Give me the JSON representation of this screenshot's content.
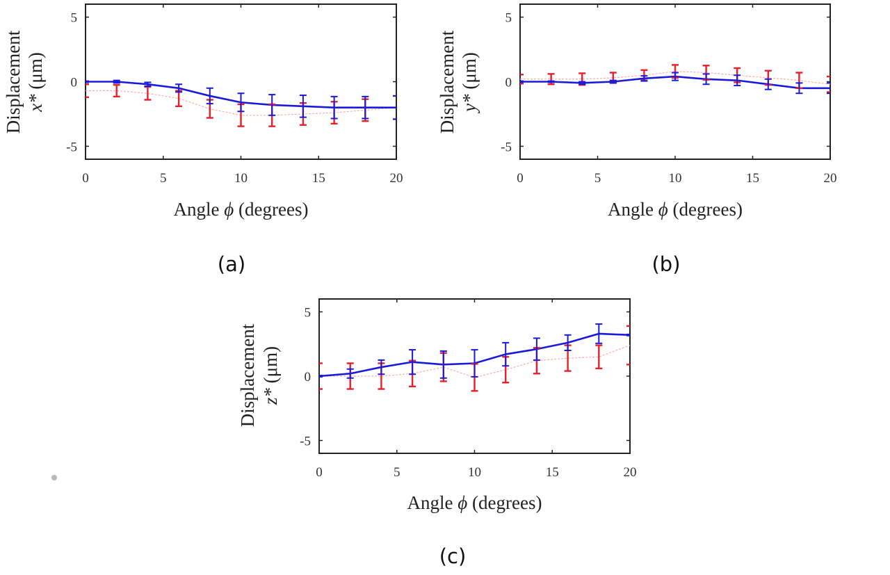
{
  "figure": {
    "captions": [
      "(a)",
      "(b)",
      "(c)"
    ]
  },
  "chart_data": [
    {
      "type": "line",
      "panel": "(a)",
      "title": "",
      "xlabel_prefix": "Angle ",
      "xlabel_symbol": "ϕ",
      "xlabel_suffix": " (degrees)",
      "xlabel": "Angle ϕ (degrees)",
      "ylabel_line1": "Displacement",
      "ylabel_var": "x*",
      "ylabel_unit": " (μm)",
      "ylabel": "Displacement x* (μm)",
      "xlim": [
        0,
        20
      ],
      "ylim": [
        -6,
        6
      ],
      "xticks": [
        "0",
        "5",
        "10",
        "15",
        "20"
      ],
      "xtick_values": [
        0,
        5,
        10,
        15,
        20
      ],
      "yticks": [
        "5",
        "0",
        "-5"
      ],
      "ytick_values": [
        5,
        0,
        -5
      ],
      "grid": false,
      "x": [
        0,
        2,
        4,
        6,
        8,
        10,
        12,
        14,
        16,
        18,
        20
      ],
      "series": [
        {
          "name": "blue",
          "color": "#1a1adb",
          "values": [
            0,
            0,
            -0.2,
            -0.5,
            -1.1,
            -1.6,
            -1.8,
            -1.9,
            -2.0,
            -2.0,
            -2.0
          ],
          "errors": [
            0.05,
            0.1,
            0.15,
            0.3,
            0.6,
            0.7,
            0.8,
            0.85,
            0.85,
            0.85,
            0.9
          ]
        },
        {
          "name": "red",
          "color": "#e8202a",
          "values": [
            -0.7,
            -0.7,
            -0.9,
            -1.3,
            -2.1,
            -2.6,
            -2.6,
            -2.5,
            -2.4,
            -2.2,
            -2.0
          ],
          "errors": [
            0.5,
            0.45,
            0.5,
            0.6,
            0.7,
            0.85,
            0.85,
            0.85,
            0.85,
            0.85,
            0.9
          ]
        }
      ]
    },
    {
      "type": "line",
      "panel": "(b)",
      "title": "",
      "xlabel_prefix": "Angle ",
      "xlabel_symbol": "ϕ",
      "xlabel_suffix": " (degrees)",
      "xlabel": "Angle ϕ (degrees)",
      "ylabel_line1": "Displacement",
      "ylabel_var": "y*",
      "ylabel_unit": " (μm)",
      "ylabel": "Displacement y* (μm)",
      "xlim": [
        0,
        20
      ],
      "ylim": [
        -6,
        6
      ],
      "xticks": [
        "0",
        "5",
        "10",
        "15",
        "20"
      ],
      "xtick_values": [
        0,
        5,
        10,
        15,
        20
      ],
      "yticks": [
        "5",
        "0",
        "-5"
      ],
      "ytick_values": [
        5,
        0,
        -5
      ],
      "grid": false,
      "x": [
        0,
        2,
        4,
        6,
        8,
        10,
        12,
        14,
        16,
        18,
        20
      ],
      "series": [
        {
          "name": "blue",
          "color": "#1a1adb",
          "values": [
            0,
            0,
            -0.1,
            0,
            0.25,
            0.4,
            0.2,
            0.1,
            -0.2,
            -0.5,
            -0.5
          ],
          "errors": [
            0.05,
            0.05,
            0.1,
            0.1,
            0.2,
            0.3,
            0.4,
            0.4,
            0.4,
            0.4,
            0.4
          ]
        },
        {
          "name": "red",
          "color": "#e8202a",
          "values": [
            0.2,
            0.2,
            0.2,
            0.3,
            0.5,
            0.8,
            0.7,
            0.5,
            0.3,
            0.1,
            -0.2
          ],
          "errors": [
            0.35,
            0.4,
            0.45,
            0.4,
            0.4,
            0.5,
            0.55,
            0.55,
            0.55,
            0.6,
            0.6
          ]
        }
      ]
    },
    {
      "type": "line",
      "panel": "(c)",
      "title": "",
      "xlabel_prefix": "Angle ",
      "xlabel_symbol": "ϕ",
      "xlabel_suffix": " (degrees)",
      "xlabel": "Angle ϕ (degrees)",
      "ylabel_line1": "Displacement",
      "ylabel_var": "z*",
      "ylabel_unit": " (μm)",
      "ylabel": "Displacement z* (μm)",
      "xlim": [
        0,
        20
      ],
      "ylim": [
        -6,
        6
      ],
      "xticks": [
        "0",
        "5",
        "10",
        "15",
        "20"
      ],
      "xtick_values": [
        0,
        5,
        10,
        15,
        20
      ],
      "yticks": [
        "5",
        "0",
        "-5"
      ],
      "ytick_values": [
        5,
        0,
        -5
      ],
      "grid": false,
      "x": [
        0,
        2,
        4,
        6,
        8,
        10,
        12,
        14,
        16,
        18,
        20
      ],
      "series": [
        {
          "name": "blue",
          "color": "#1a1adb",
          "values": [
            0,
            0.2,
            0.7,
            1.1,
            0.9,
            1.0,
            1.7,
            2.1,
            2.6,
            3.3,
            3.2
          ],
          "errors": [
            0.05,
            0.35,
            0.55,
            0.95,
            1.05,
            1.05,
            0.9,
            0.85,
            0.6,
            0.75,
            0.05
          ]
        },
        {
          "name": "red",
          "color": "#e8202a",
          "values": [
            0,
            0,
            0,
            0.2,
            0.7,
            -0.1,
            0.5,
            1.2,
            1.4,
            1.5,
            2.4
          ],
          "errors": [
            1.0,
            1.0,
            1.0,
            1.0,
            1.1,
            1.05,
            1.0,
            1.0,
            1.0,
            0.9,
            1.5
          ]
        }
      ]
    }
  ]
}
